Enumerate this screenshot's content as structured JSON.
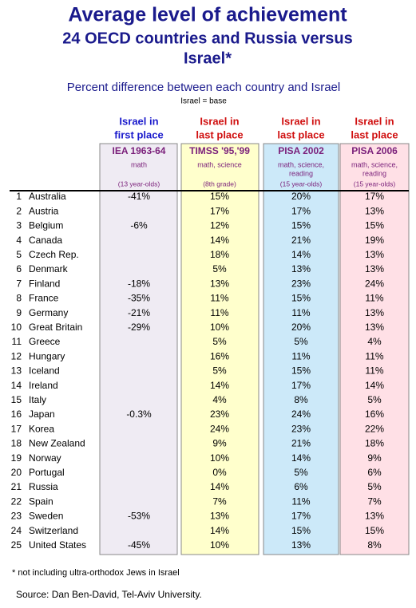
{
  "header": {
    "title": [
      "Average level of achievement",
      "24 OECD countries and Russia versus",
      "Israel*"
    ],
    "subtitle": "Percent difference between each country and Israel",
    "base_note": "Israel = base"
  },
  "table": {
    "groups": [
      [
        "Israel in",
        "first place"
      ],
      [
        "Israel in",
        "last place"
      ],
      [
        "Israel in",
        "last place"
      ],
      [
        "Israel in",
        "last place"
      ]
    ],
    "columns": [
      {
        "title": "IEA 1963-64",
        "subjects": [
          "math"
        ],
        "ages": "(13 year-olds)"
      },
      {
        "title": "TIMSS '95,'99",
        "subjects": [
          "math, science"
        ],
        "ages": "(8th grade)"
      },
      {
        "title": "PISA 2002",
        "subjects": [
          "math, science,",
          "reading"
        ],
        "ages": "(15 year-olds)"
      },
      {
        "title": "PISA 2006",
        "subjects": [
          "math, science,",
          "reading"
        ],
        "ages": "(15 year-olds)"
      }
    ],
    "rows": [
      [
        "1",
        "Australia",
        "-41%",
        "15%",
        "20%",
        "17%"
      ],
      [
        "2",
        "Austria",
        null,
        "17%",
        "17%",
        "13%"
      ],
      [
        "3",
        "Belgium",
        "-6%",
        "12%",
        "15%",
        "15%"
      ],
      [
        "4",
        "Canada",
        null,
        "14%",
        "21%",
        "19%"
      ],
      [
        "5",
        "Czech Rep.",
        null,
        "18%",
        "14%",
        "13%"
      ],
      [
        "6",
        "Denmark",
        null,
        "5%",
        "13%",
        "13%"
      ],
      [
        "7",
        "Finland",
        "-18%",
        "13%",
        "23%",
        "24%"
      ],
      [
        "8",
        "France",
        "-35%",
        "11%",
        "15%",
        "11%"
      ],
      [
        "9",
        "Germany",
        "-21%",
        "11%",
        "11%",
        "13%"
      ],
      [
        "10",
        "Great Britain",
        "-29%",
        "10%",
        "20%",
        "13%"
      ],
      [
        "11",
        "Greece",
        null,
        "5%",
        "5%",
        "4%"
      ],
      [
        "12",
        "Hungary",
        null,
        "16%",
        "11%",
        "11%"
      ],
      [
        "13",
        "Iceland",
        null,
        "5%",
        "15%",
        "11%"
      ],
      [
        "14",
        "Ireland",
        null,
        "14%",
        "17%",
        "14%"
      ],
      [
        "15",
        "Italy",
        null,
        "4%",
        "8%",
        "5%"
      ],
      [
        "16",
        "Japan",
        "-0.3%",
        "23%",
        "24%",
        "16%"
      ],
      [
        "17",
        "Korea",
        null,
        "24%",
        "23%",
        "22%"
      ],
      [
        "18",
        "New Zealand",
        null,
        "9%",
        "21%",
        "18%"
      ],
      [
        "19",
        "Norway",
        null,
        "10%",
        "14%",
        "9%"
      ],
      [
        "20",
        "Portugal",
        null,
        "0%",
        "5%",
        "6%"
      ],
      [
        "21",
        "Russia",
        null,
        "14%",
        "6%",
        "5%"
      ],
      [
        "22",
        "Spain",
        null,
        "7%",
        "11%",
        "7%"
      ],
      [
        "23",
        "Sweden",
        "-53%",
        "13%",
        "17%",
        "13%"
      ],
      [
        "24",
        "Switzerland",
        null,
        "14%",
        "15%",
        "15%"
      ],
      [
        "25",
        "United States",
        "-45%",
        "10%",
        "13%",
        "8%"
      ]
    ]
  },
  "footer": {
    "note": "* not including ultra-orthodox Jews in Israel",
    "source": "Source: Dan Ben-David, Tel-Aviv University."
  }
}
